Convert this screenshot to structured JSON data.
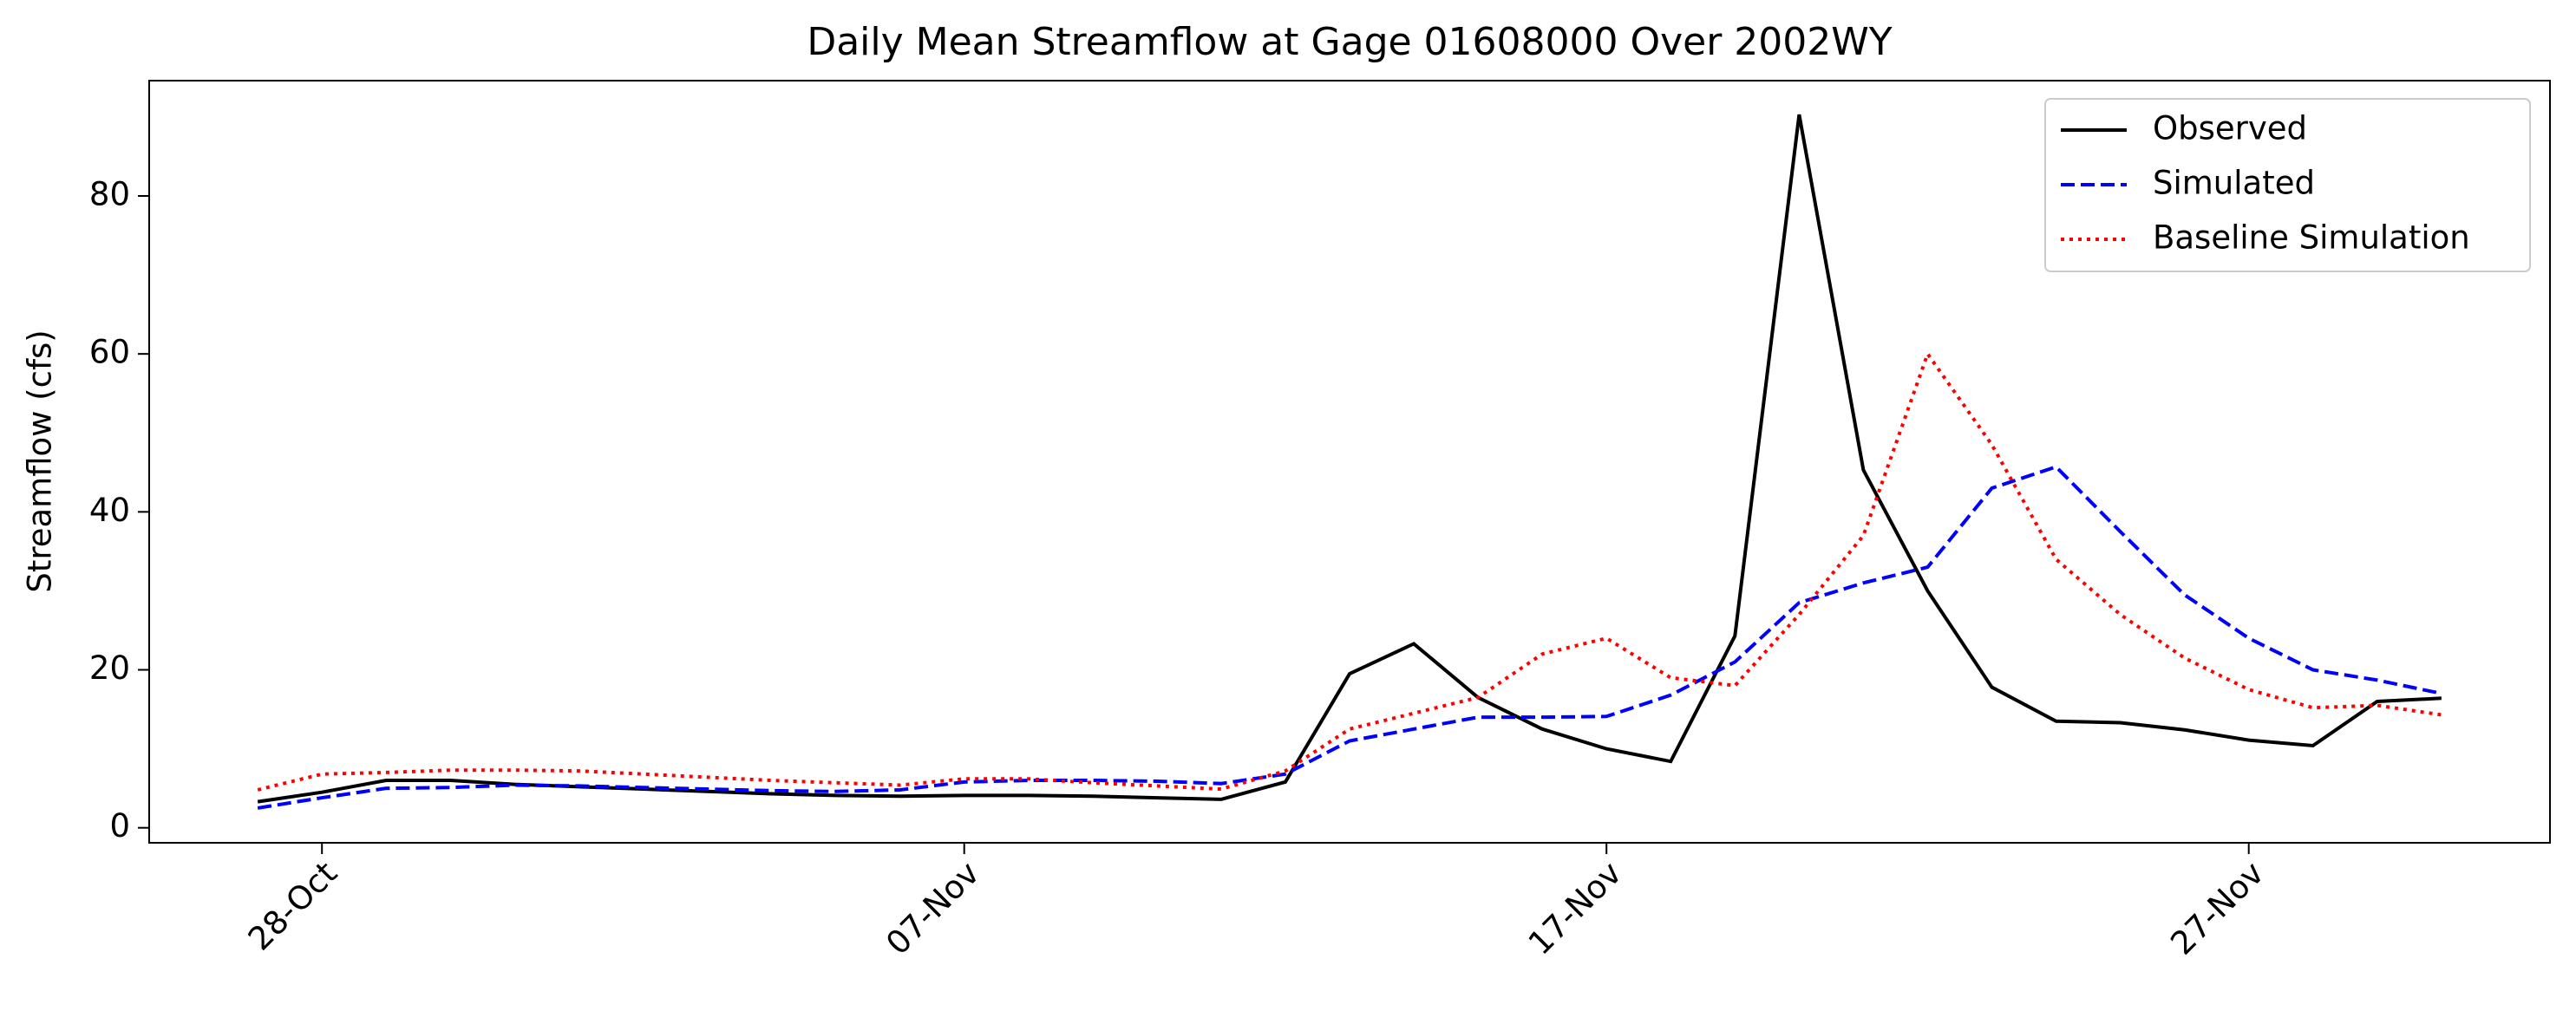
{
  "chart_data": {
    "type": "line",
    "title": "Daily Mean Streamflow at Gage 01608000 Over 2002WY",
    "ylabel": "Streamflow (cfs)",
    "x": [
      "27-Oct",
      "28-Oct",
      "29-Oct",
      "30-Oct",
      "31-Oct",
      "01-Nov",
      "02-Nov",
      "03-Nov",
      "04-Nov",
      "05-Nov",
      "06-Nov",
      "07-Nov",
      "08-Nov",
      "09-Nov",
      "10-Nov",
      "11-Nov",
      "12-Nov",
      "13-Nov",
      "14-Nov",
      "15-Nov",
      "16-Nov",
      "17-Nov",
      "18-Nov",
      "19-Nov",
      "20-Nov",
      "21-Nov",
      "22-Nov",
      "23-Nov",
      "24-Nov",
      "25-Nov",
      "26-Nov",
      "27-Nov",
      "28-Nov",
      "29-Nov",
      "30-Nov"
    ],
    "xticks": [
      "28-Oct",
      "07-Nov",
      "17-Nov",
      "27-Nov"
    ],
    "series": [
      {
        "name": "Observed",
        "color": "#000000",
        "linestyle": "solid",
        "values": [
          3.3,
          4.5,
          6,
          6,
          5.5,
          5.2,
          4.9,
          4.6,
          4.3,
          4.1,
          4.0,
          4.1,
          4.1,
          4.0,
          3.8,
          3.6,
          5.8,
          19.5,
          23.3,
          16.5,
          12.5,
          10,
          8.4,
          24.3,
          90.3,
          45.3,
          30,
          17.8,
          13.5,
          13.3,
          12.4,
          11.1,
          10.4,
          16,
          16.4
        ]
      },
      {
        "name": "Simulated",
        "color": "#0000ff",
        "linestyle": "dashed",
        "values": [
          2.5,
          3.8,
          5,
          5.1,
          5.4,
          5.3,
          5.1,
          4.9,
          4.7,
          4.6,
          4.8,
          5.8,
          6.0,
          6.0,
          5.9,
          5.6,
          6.8,
          11,
          12.5,
          14,
          14,
          14.1,
          16.8,
          21,
          28.5,
          31,
          33,
          43,
          45.7,
          37.5,
          29.5,
          24,
          20,
          18.7,
          17
        ]
      },
      {
        "name": "Baseline Simulation",
        "color": "#ff0000",
        "linestyle": "dotted",
        "values": [
          4.8,
          6.8,
          7,
          7.3,
          7.3,
          7.2,
          6.8,
          6.4,
          6.0,
          5.7,
          5.4,
          6.2,
          6.2,
          5.7,
          5.3,
          4.9,
          7.2,
          12.5,
          14.5,
          16.5,
          22,
          24,
          19,
          18,
          27,
          37,
          60,
          48.5,
          34,
          27,
          21.5,
          17.5,
          15.2,
          15.5,
          14.3
        ]
      }
    ],
    "ylim": [
      -1.9,
      94.6
    ],
    "yticks": [
      0,
      20,
      40,
      60,
      80
    ],
    "grid": false,
    "legend": "upper right"
  }
}
